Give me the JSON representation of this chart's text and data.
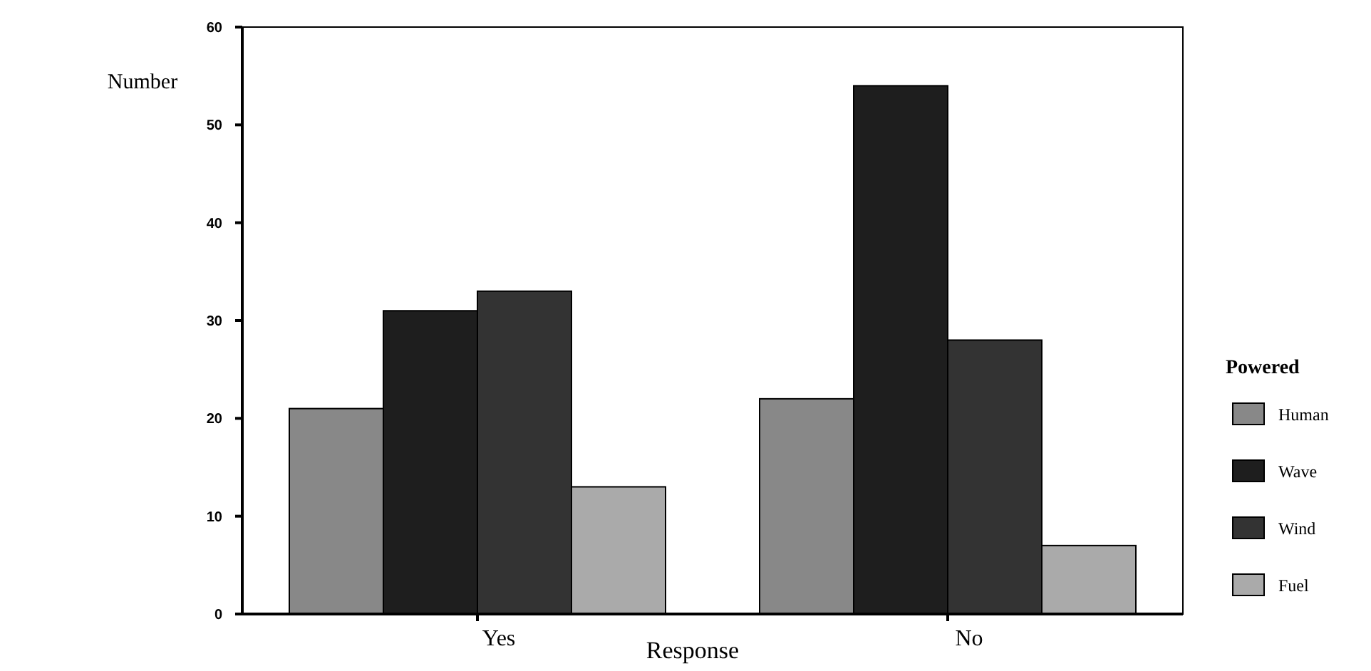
{
  "chart_data": {
    "type": "bar",
    "ylabel": "Number",
    "xlabel": "Response",
    "legend_title": "Powered",
    "categories": [
      "Yes",
      "No"
    ],
    "series": [
      {
        "name": "Human",
        "color": "#888888",
        "values": [
          21,
          22
        ]
      },
      {
        "name": "Wave",
        "color": "#1e1e1e",
        "values": [
          31,
          54
        ]
      },
      {
        "name": "Wind",
        "color": "#333333",
        "values": [
          33,
          28
        ]
      },
      {
        "name": "Fuel",
        "color": "#aaaaaa",
        "values": [
          13,
          7
        ]
      }
    ],
    "ylim": [
      0,
      60
    ],
    "yticks": [
      0,
      10,
      20,
      30,
      40,
      50,
      60
    ],
    "grid": false,
    "legend": "right"
  }
}
